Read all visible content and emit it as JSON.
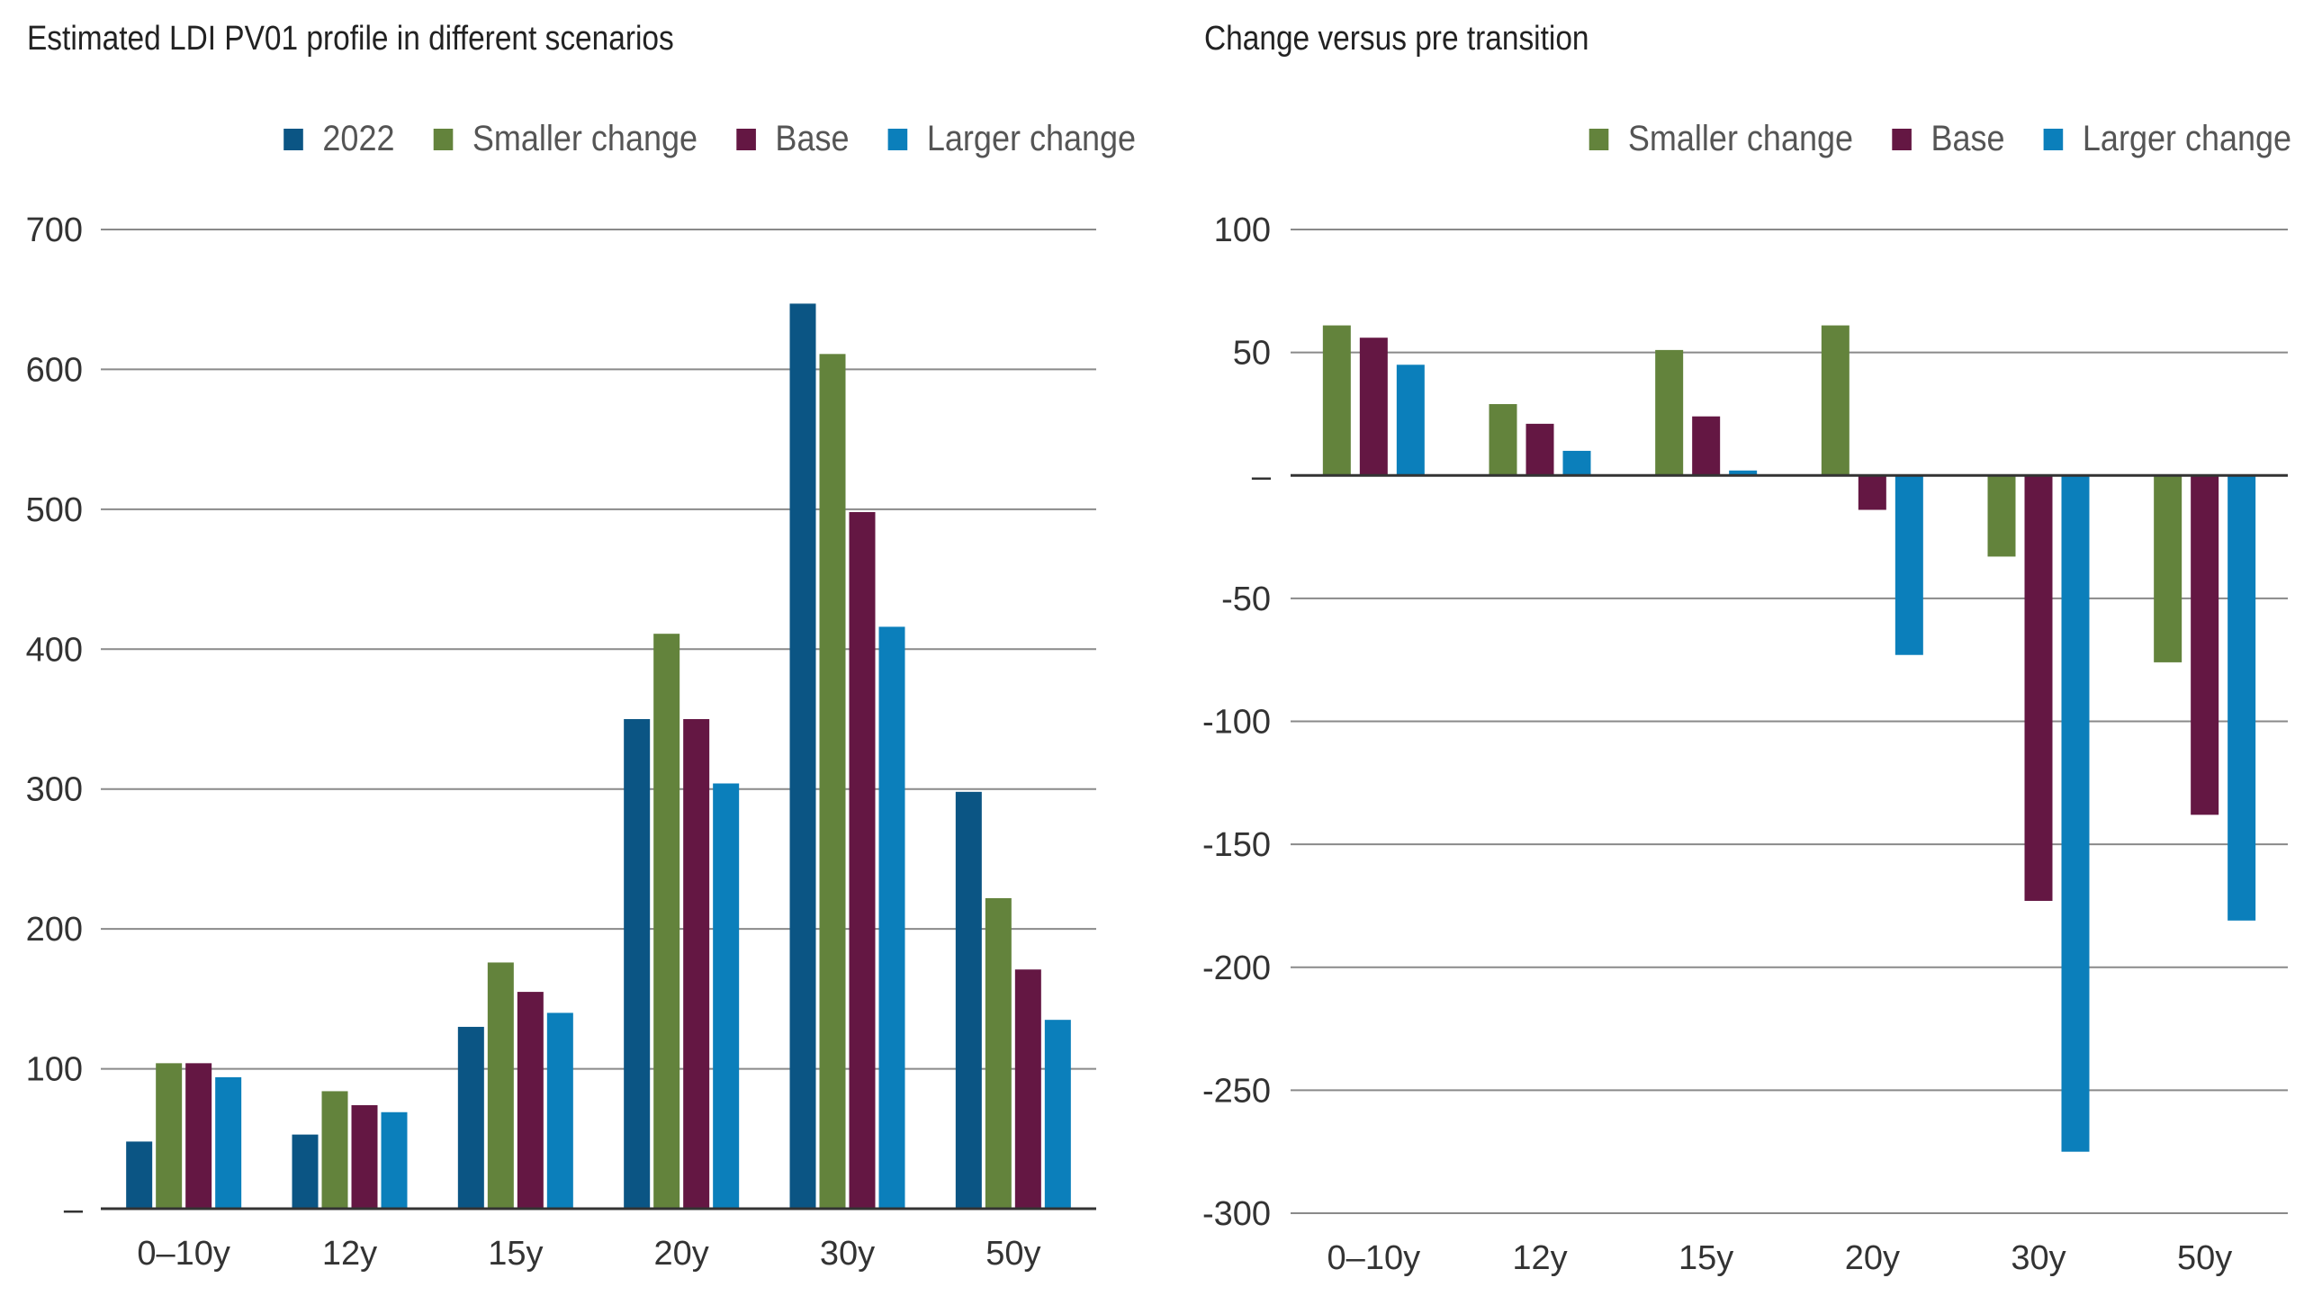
{
  "chart_data": [
    {
      "type": "bar",
      "title": "Estimated LDI PV01 profile in different scenarios",
      "categories": [
        "0–10y",
        "12y",
        "15y",
        "20y",
        "30y",
        "50y"
      ],
      "series": [
        {
          "name": "2022",
          "color": "#0b5584",
          "values": [
            48,
            53,
            130,
            350,
            647,
            298
          ]
        },
        {
          "name": "Smaller change",
          "color": "#63833c",
          "values": [
            104,
            84,
            176,
            411,
            611,
            222
          ]
        },
        {
          "name": "Base",
          "color": "#641743",
          "values": [
            104,
            74,
            155,
            350,
            498,
            171
          ]
        },
        {
          "name": "Larger change",
          "color": "#0b7fbb",
          "values": [
            94,
            69,
            140,
            304,
            416,
            135
          ]
        }
      ],
      "ylim": [
        0,
        700
      ],
      "yticks": [
        0,
        100,
        200,
        300,
        400,
        500,
        600,
        700
      ],
      "ytick_labels": [
        "–",
        "100",
        "200",
        "300",
        "400",
        "500",
        "600",
        "700"
      ],
      "grid": true,
      "legend": "top-right"
    },
    {
      "type": "bar",
      "title": "Change versus pre transition",
      "categories": [
        "0–10y",
        "12y",
        "15y",
        "20y",
        "30y",
        "50y"
      ],
      "series": [
        {
          "name": "Smaller change",
          "color": "#63833c",
          "values": [
            61,
            29,
            51,
            61,
            -33,
            -76
          ]
        },
        {
          "name": "Base",
          "color": "#641743",
          "values": [
            56,
            21,
            24,
            -14,
            -173,
            -138
          ]
        },
        {
          "name": "Larger change",
          "color": "#0b7fbb",
          "values": [
            45,
            10,
            2,
            -73,
            -275,
            -181
          ]
        }
      ],
      "ylim": [
        -300,
        100
      ],
      "yticks": [
        -300,
        -250,
        -200,
        -150,
        -100,
        -50,
        0,
        50,
        100
      ],
      "ytick_labels": [
        "-300",
        "-250",
        "-200",
        "-150",
        "-100",
        "-50",
        "–",
        "50",
        "100"
      ],
      "grid": true,
      "legend": "top-right"
    }
  ]
}
